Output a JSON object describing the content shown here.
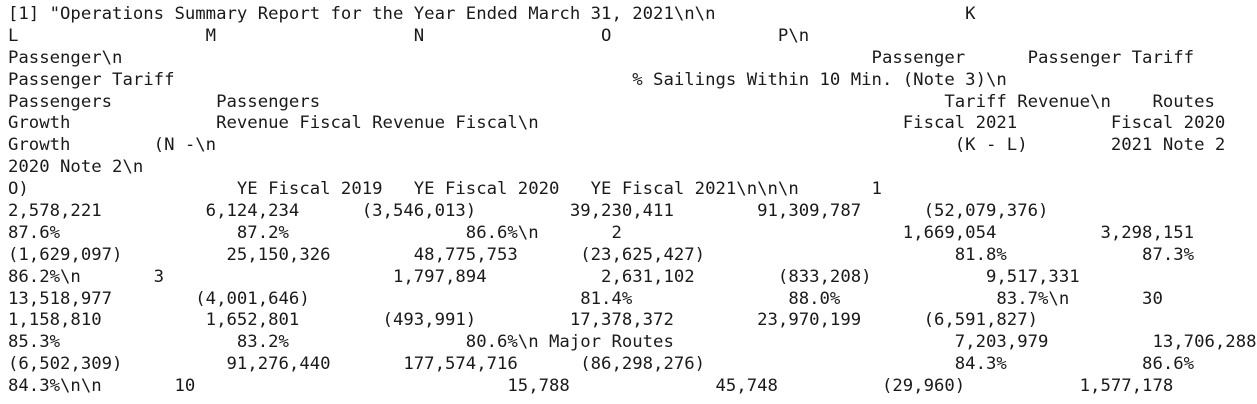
{
  "document": {
    "lines": [
      "[1] \"Operations Summary Report for the Year Ended March 31, 2021\\n\\n                        K",
      "L                  M                   N                 O                P\\n",
      "Passenger\\n                                                                        Passenger      Passenger Tariff",
      "Passenger Tariff                                            % Sailings Within 10 Min. (Note 3)\\n",
      "Passengers          Passengers                                                            Tariff Revenue\\n    Routes",
      "Growth              Revenue Fiscal Revenue Fiscal\\n                                   Fiscal 2021         Fiscal 2020",
      "Growth        (N -\\n                                                                       (K - L)        2021 Note 2",
      "2020 Note 2\\n",
      "O)                    YE Fiscal 2019   YE Fiscal 2020   YE Fiscal 2021\\n\\n\\n       1",
      "2,578,221          6,124,234      (3,546,013)         39,230,411        91,309,787      (52,079,376)",
      "87.6%                 87.2%                 86.6%\\n       2                           1,669,054          3,298,151",
      "(1,629,097)          25,150,326        48,775,753      (23,625,427)                        81.8%             87.3%",
      "86.2%\\n       3                      1,797,894           2,631,102        (833,208)           9,517,331",
      "13,518,977        (4,001,646)                          81.4%               88.0%               83.7%\\n       30",
      "1,158,810          1,652,801        (493,991)         17,378,372        23,970,199      (6,591,827)",
      "85.3%                 83.2%                 80.6%\\n Major Routes                           7,203,979          13,706,288",
      "(6,502,309)          91,276,440       177,574,716      (86,298,276)                        84.3%             86.6%",
      "84.3%\\n\\n       10                              15,788              45,748          (29,960)           1,577,178"
    ]
  }
}
